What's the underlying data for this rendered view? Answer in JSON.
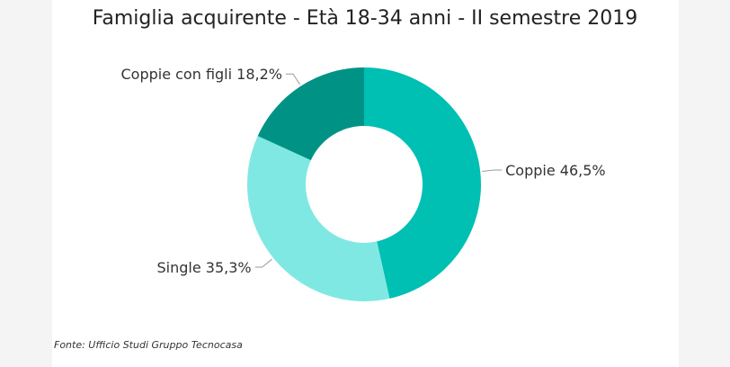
{
  "chart_data": {
    "type": "pie",
    "title": "Famiglia acquirente - Età 18-34 anni - II semestre 2019",
    "donut": true,
    "slices": [
      {
        "label": "Coppie 46,5%",
        "value": 46.5,
        "color": "#00bfb3"
      },
      {
        "label": "Single 35,3%",
        "value": 35.3,
        "color": "#80e8e2"
      },
      {
        "label": "Coppie con figli 18,2%",
        "value": 18.2,
        "color": "#009385"
      }
    ],
    "source": "Fonte: Ufficio Studi Gruppo Tecnocasa"
  }
}
